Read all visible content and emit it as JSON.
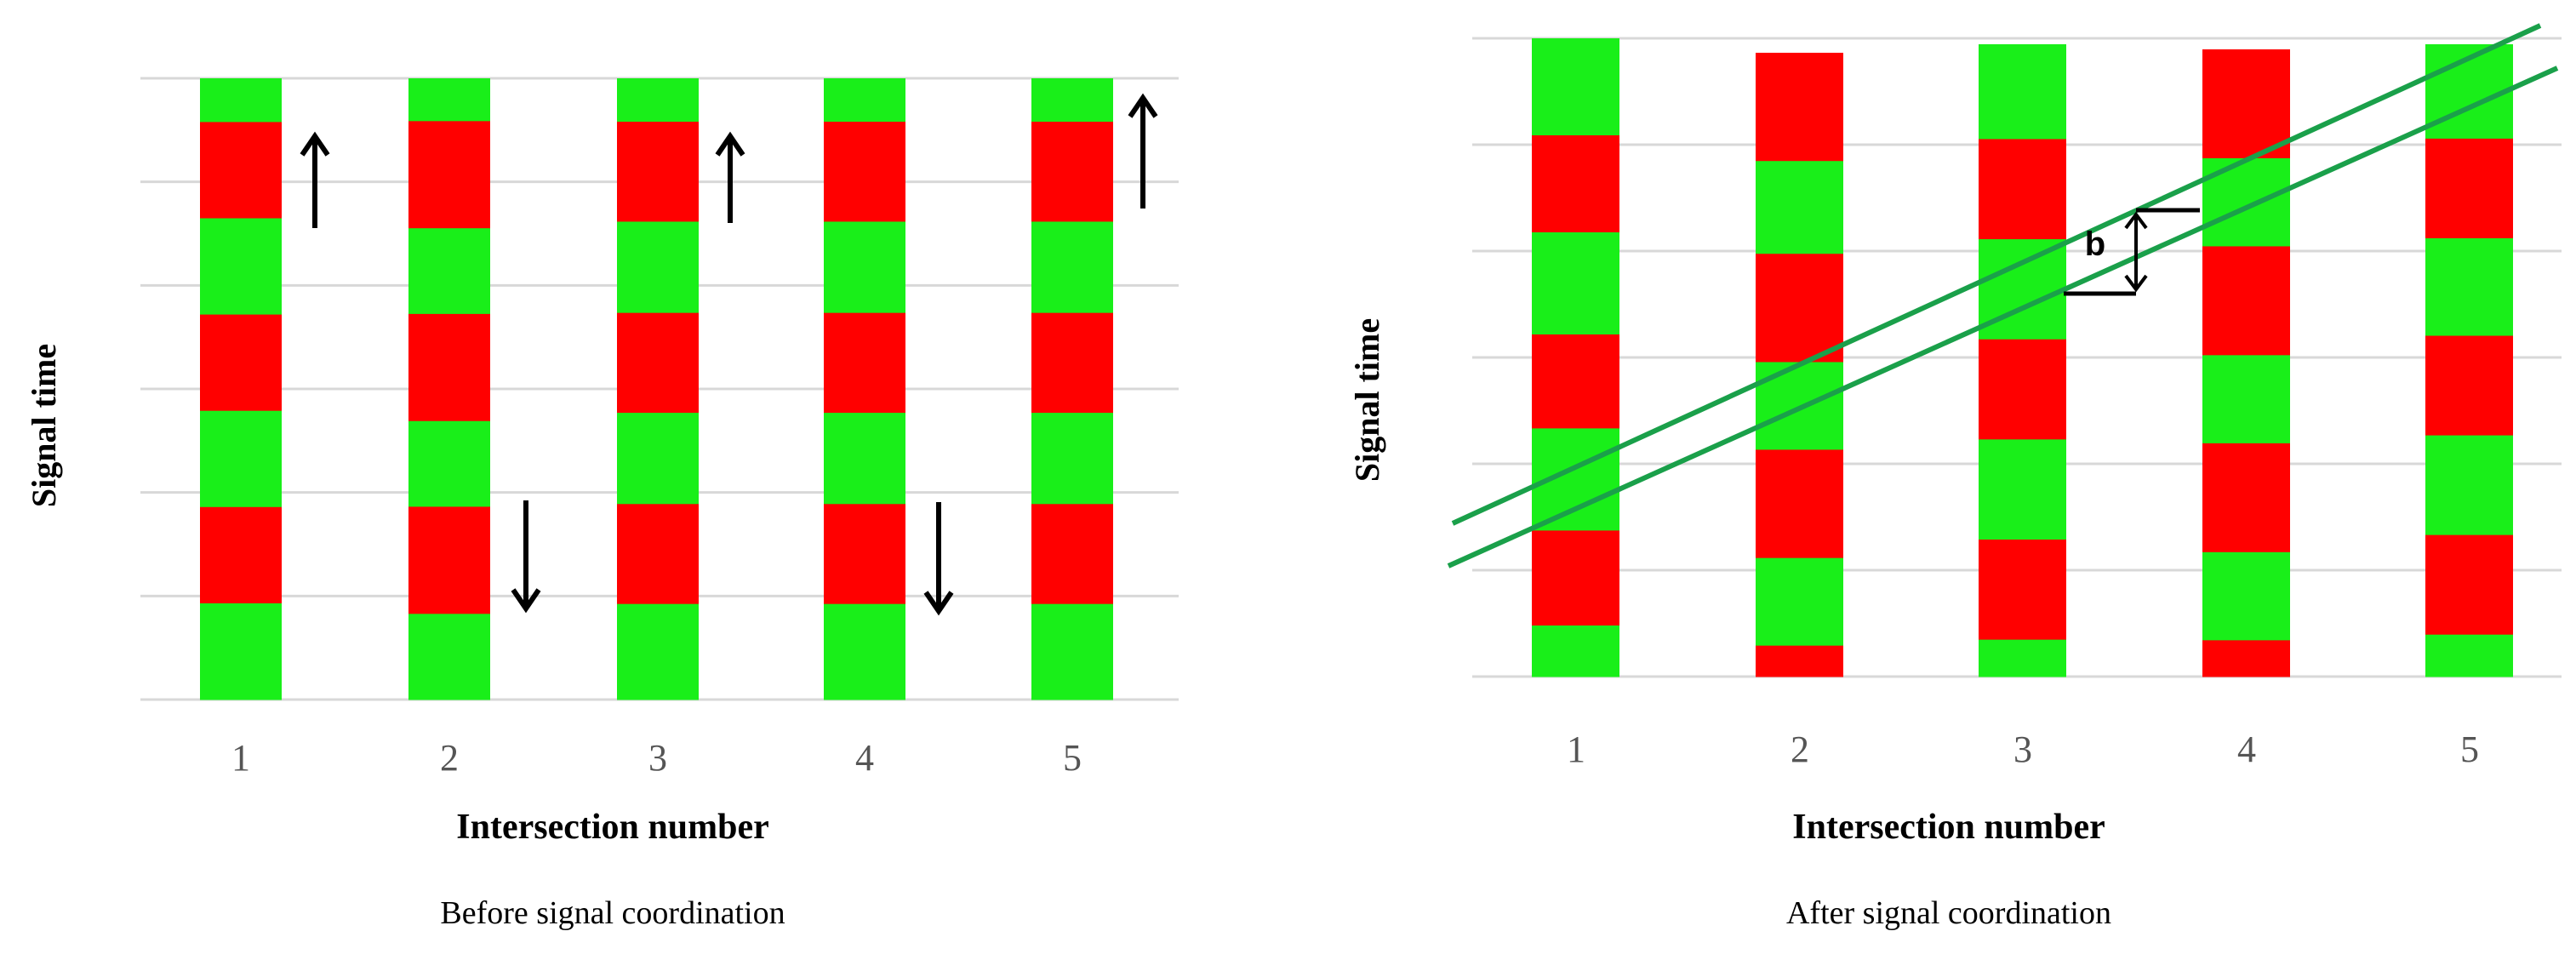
{
  "panels": [
    {
      "id": "before",
      "ylabel": "Signal time",
      "xlabel": "Intersection number",
      "caption": "Before signal coordination",
      "intersections": [
        {
          "label": "1",
          "start": "green",
          "phases": [
            0.5,
            1.1,
            1.1,
            1.1,
            1.1,
            1.1,
            1.1
          ]
        },
        {
          "label": "2",
          "start": "green",
          "phases": [
            0.5,
            1.25,
            1.0,
            1.25,
            1.0,
            1.25,
            1.0
          ]
        },
        {
          "label": "3",
          "start": "green",
          "phases": [
            0.5,
            1.15,
            1.05,
            1.15,
            1.05,
            1.15,
            1.1
          ]
        },
        {
          "label": "4",
          "start": "green",
          "phases": [
            0.5,
            1.15,
            1.05,
            1.15,
            1.05,
            1.15,
            1.1
          ]
        },
        {
          "label": "5",
          "start": "green",
          "phases": [
            0.5,
            1.15,
            1.05,
            1.15,
            1.05,
            1.15,
            1.1
          ]
        }
      ],
      "arrows": [
        {
          "after": "1",
          "dir": "up"
        },
        {
          "after": "2",
          "dir": "down"
        },
        {
          "after": "3",
          "dir": "up"
        },
        {
          "after": "4",
          "dir": "down"
        },
        {
          "after": "5",
          "dir": "up"
        }
      ]
    },
    {
      "id": "after",
      "ylabel": "Signal time",
      "xlabel": "Intersection number",
      "caption": "After signal coordination",
      "band_label": "b",
      "intersections": [
        {
          "label": "1",
          "start": "green",
          "phases": [
            0.95,
            0.95,
            1.0,
            0.92,
            1.0,
            0.93,
            0.5
          ]
        },
        {
          "label": "2",
          "start": "red",
          "phases": [
            1.05,
            0.9,
            1.05,
            0.85,
            1.05,
            0.85,
            0.3
          ]
        },
        {
          "label": "3",
          "start": "green",
          "phases": [
            0.9,
            0.95,
            0.95,
            0.95,
            0.95,
            0.95,
            0.35
          ]
        },
        {
          "label": "4",
          "start": "red",
          "phases": [
            1.05,
            0.85,
            1.05,
            0.85,
            1.05,
            0.85,
            0.35
          ]
        },
        {
          "label": "5",
          "start": "green",
          "phases": [
            0.9,
            0.95,
            0.93,
            0.95,
            0.95,
            0.95,
            0.4
          ]
        }
      ]
    }
  ],
  "colors": {
    "green": "#19ef19",
    "red": "#ff0000",
    "band": "#1aa04a",
    "grid": "#d8d8d8",
    "tick": "#555555",
    "text": "#000000"
  }
}
